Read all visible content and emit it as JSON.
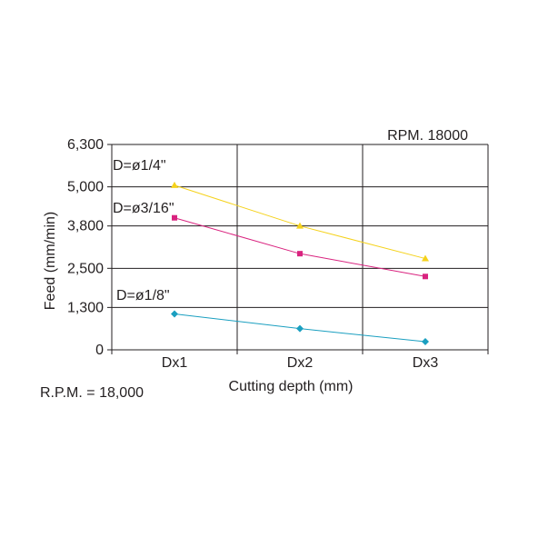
{
  "chart_data": {
    "type": "line",
    "title": "",
    "rpm_label": "RPM. 18000",
    "footnote": "R.P.M. = 18,000",
    "xlabel": "Cutting depth (mm)",
    "ylabel": "Feed (mm/min)",
    "categories": [
      "Dx1",
      "Dx2",
      "Dx3"
    ],
    "yticks": [
      0,
      1300,
      2500,
      3800,
      5000,
      6300
    ],
    "ytick_labels": [
      "0",
      "1,300",
      "2,500",
      "3,800",
      "5,000",
      "6,300"
    ],
    "ylim": [
      0,
      6300
    ],
    "grid": true,
    "series": [
      {
        "name": "D=ø1/4\"",
        "values": [
          5050,
          3800,
          2800
        ],
        "color": "#f5d21c",
        "marker": "triangle"
      },
      {
        "name": "D=ø3/16\"",
        "values": [
          4050,
          2950,
          2250
        ],
        "color": "#d9237f",
        "marker": "square"
      },
      {
        "name": "D=ø1/8\"",
        "values": [
          1100,
          650,
          250
        ],
        "color": "#1a9fc0",
        "marker": "diamond"
      }
    ]
  }
}
